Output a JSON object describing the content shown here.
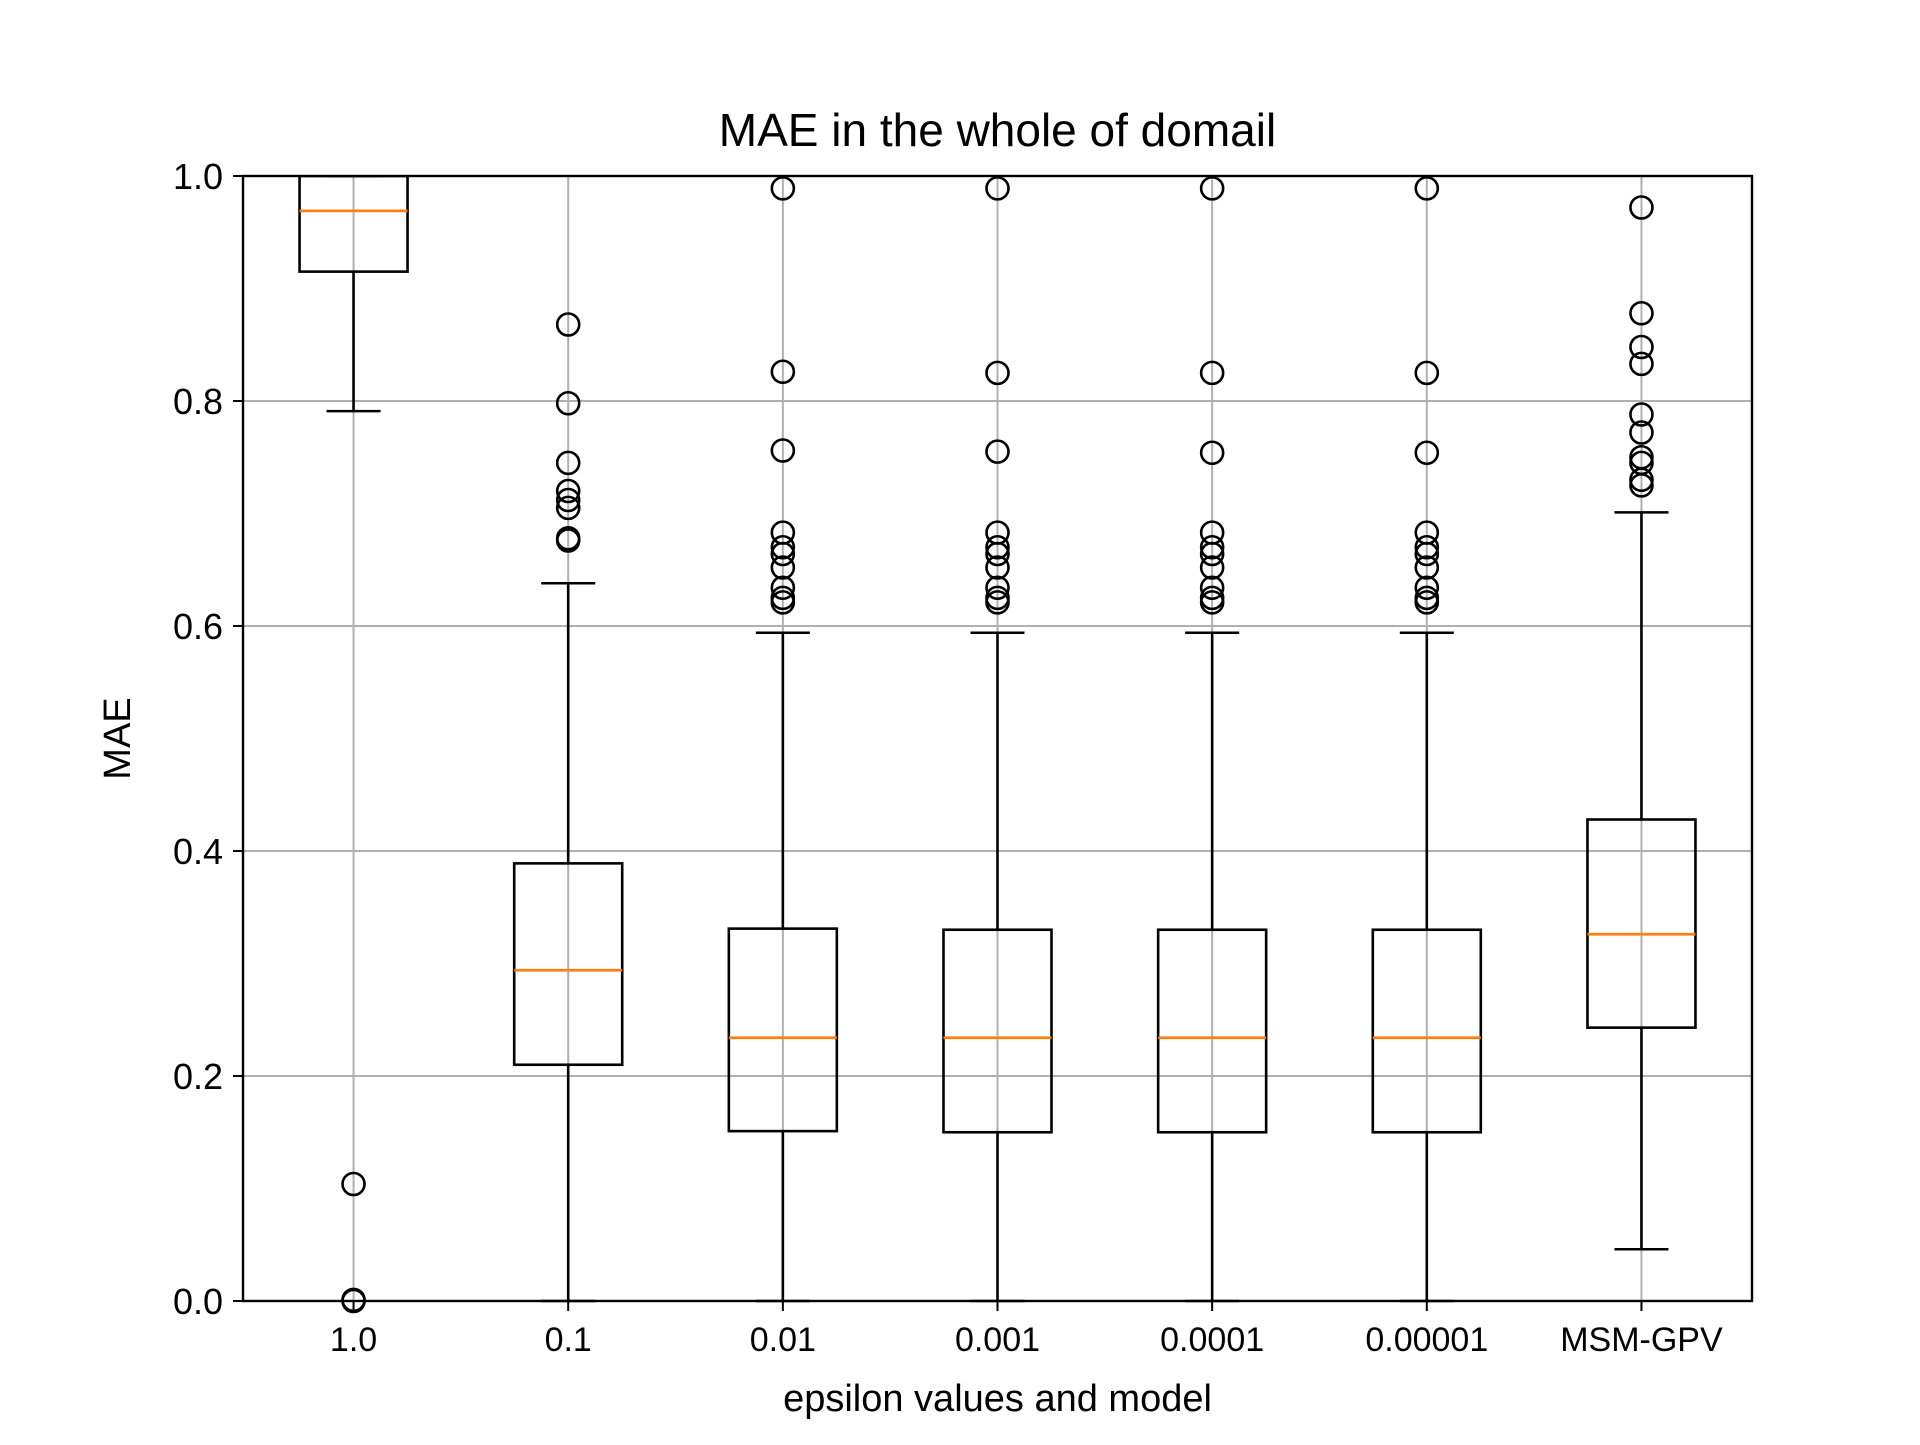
{
  "chart_data": {
    "type": "boxplot",
    "title": "MAE in the whole of domail",
    "xlabel": "epsilon values and model",
    "ylabel": "MAE",
    "ylim": [
      0,
      1.0
    ],
    "yticks": [
      "0.0",
      "0.2",
      "0.4",
      "0.6",
      "0.8",
      "1.0"
    ],
    "grid": true,
    "colors": {
      "box": "#000000",
      "median": "#ff7f0e",
      "grid": "#b0b0b0"
    },
    "categories": [
      "1.0",
      "0.1",
      "0.01",
      "0.001",
      "0.0001",
      "0.00001",
      "MSM-GPV"
    ],
    "boxes": [
      {
        "label": "1.0",
        "whisker_low": 0.791,
        "q1": 0.915,
        "median": 0.969,
        "q3": 1.0,
        "whisker_high": 1.0,
        "outliers": [
          0.104,
          0.001,
          0.0
        ]
      },
      {
        "label": "0.1",
        "whisker_low": 0.0,
        "q1": 0.21,
        "median": 0.294,
        "q3": 0.389,
        "whisker_high": 0.638,
        "outliers": [
          0.868,
          0.798,
          0.745,
          0.72,
          0.712,
          0.705,
          0.678,
          0.676
        ]
      },
      {
        "label": "0.01",
        "whisker_low": 0.0,
        "q1": 0.151,
        "median": 0.234,
        "q3": 0.331,
        "whisker_high": 0.594,
        "outliers": [
          0.989,
          0.826,
          0.756,
          0.683,
          0.67,
          0.664,
          0.652,
          0.634,
          0.625,
          0.621
        ]
      },
      {
        "label": "0.001",
        "whisker_low": 0.0,
        "q1": 0.15,
        "median": 0.234,
        "q3": 0.33,
        "whisker_high": 0.594,
        "outliers": [
          0.989,
          0.825,
          0.755,
          0.683,
          0.67,
          0.664,
          0.652,
          0.634,
          0.625,
          0.621
        ]
      },
      {
        "label": "0.0001",
        "whisker_low": 0.0,
        "q1": 0.15,
        "median": 0.234,
        "q3": 0.33,
        "whisker_high": 0.594,
        "outliers": [
          0.989,
          0.825,
          0.754,
          0.683,
          0.67,
          0.664,
          0.652,
          0.634,
          0.625,
          0.621
        ]
      },
      {
        "label": "0.00001",
        "whisker_low": 0.0,
        "q1": 0.15,
        "median": 0.234,
        "q3": 0.33,
        "whisker_high": 0.594,
        "outliers": [
          0.989,
          0.825,
          0.754,
          0.683,
          0.67,
          0.664,
          0.652,
          0.634,
          0.625,
          0.621
        ]
      },
      {
        "label": "MSM-GPV",
        "whisker_low": 0.046,
        "q1": 0.243,
        "median": 0.326,
        "q3": 0.428,
        "whisker_high": 0.701,
        "outliers": [
          0.972,
          0.878,
          0.848,
          0.833,
          0.788,
          0.772,
          0.75,
          0.745,
          0.73,
          0.725
        ]
      }
    ]
  }
}
